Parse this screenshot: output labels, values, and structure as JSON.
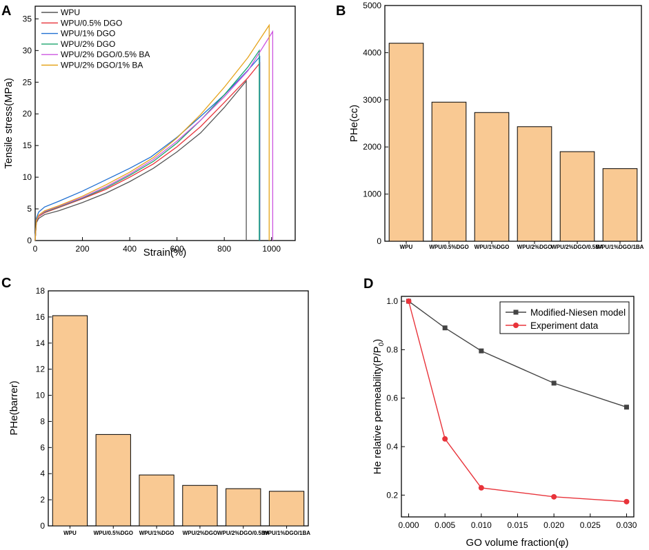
{
  "chart_data": [
    {
      "panel": "A",
      "type": "line",
      "xlabel": "Strain(%)",
      "ylabel": "Tensile stress(MPa)",
      "xlim": [
        0,
        1100
      ],
      "ylim": [
        0,
        37
      ],
      "xticks": [
        0,
        200,
        400,
        600,
        800,
        1000
      ],
      "yticks": [
        0,
        5,
        10,
        15,
        20,
        25,
        30,
        35
      ],
      "legend_position": "top-left",
      "series": [
        {
          "name": "WPU",
          "color": "#555555",
          "break_strain": 893,
          "break_stress": 25.2,
          "points": [
            [
              0,
              0
            ],
            [
              5,
              2.8
            ],
            [
              15,
              3.5
            ],
            [
              40,
              4.1
            ],
            [
              100,
              4.7
            ],
            [
              200,
              6.0
            ],
            [
              300,
              7.5
            ],
            [
              400,
              9.3
            ],
            [
              500,
              11.4
            ],
            [
              600,
              14.0
            ],
            [
              700,
              17.0
            ],
            [
              800,
              21.0
            ],
            [
              893,
              25.2
            ],
            [
              893,
              0
            ]
          ]
        },
        {
          "name": "WPU/0.5% DGO",
          "color": "#e8333a",
          "break_strain": 950,
          "break_stress": 28.0,
          "points": [
            [
              0,
              0
            ],
            [
              5,
              3.0
            ],
            [
              15,
              3.8
            ],
            [
              40,
              4.4
            ],
            [
              100,
              5.2
            ],
            [
              200,
              6.6
            ],
            [
              300,
              8.1
            ],
            [
              400,
              10.0
            ],
            [
              500,
              12.1
            ],
            [
              600,
              14.8
            ],
            [
              700,
              18.0
            ],
            [
              800,
              21.8
            ],
            [
              900,
              25.7
            ],
            [
              950,
              28.0
            ],
            [
              950,
              0
            ]
          ]
        },
        {
          "name": "WPU/1% DGO",
          "color": "#1f6fd1",
          "break_strain": 950,
          "break_stress": 29.0,
          "points": [
            [
              0,
              0
            ],
            [
              5,
              3.5
            ],
            [
              15,
              4.5
            ],
            [
              40,
              5.3
            ],
            [
              100,
              6.2
            ],
            [
              200,
              7.8
            ],
            [
              300,
              9.6
            ],
            [
              400,
              11.4
            ],
            [
              490,
              13.2
            ],
            [
              600,
              16.3
            ],
            [
              700,
              19.6
            ],
            [
              800,
              23.0
            ],
            [
              900,
              26.9
            ],
            [
              950,
              29.0
            ],
            [
              950,
              0
            ]
          ]
        },
        {
          "name": "WPU/2% DGO",
          "color": "#1aa36d",
          "break_strain": 948,
          "break_stress": 30.0,
          "points": [
            [
              0,
              0
            ],
            [
              5,
              3.1
            ],
            [
              15,
              3.9
            ],
            [
              40,
              4.5
            ],
            [
              100,
              5.3
            ],
            [
              200,
              6.7
            ],
            [
              300,
              8.3
            ],
            [
              400,
              10.3
            ],
            [
              500,
              12.5
            ],
            [
              600,
              15.4
            ],
            [
              700,
              19.0
            ],
            [
              800,
              23.0
            ],
            [
              900,
              27.4
            ],
            [
              948,
              30.0
            ],
            [
              948,
              0
            ]
          ]
        },
        {
          "name": "WPU/2% DGO/0.5% BA",
          "color": "#cc55e0",
          "break_strain": 1005,
          "break_stress": 33.0,
          "points": [
            [
              0,
              0
            ],
            [
              5,
              3.1
            ],
            [
              15,
              3.9
            ],
            [
              40,
              4.6
            ],
            [
              100,
              5.4
            ],
            [
              200,
              6.8
            ],
            [
              300,
              8.5
            ],
            [
              400,
              10.5
            ],
            [
              500,
              12.8
            ],
            [
              600,
              15.7
            ],
            [
              700,
              19.0
            ],
            [
              800,
              22.7
            ],
            [
              900,
              26.8
            ],
            [
              1005,
              33.0
            ],
            [
              1005,
              0
            ]
          ]
        },
        {
          "name": "WPU/2% DGO/1% BA",
          "color": "#e5a31a",
          "break_strain": 990,
          "break_stress": 34.0,
          "points": [
            [
              0,
              0
            ],
            [
              5,
              3.2
            ],
            [
              15,
              4.0
            ],
            [
              40,
              4.7
            ],
            [
              100,
              5.5
            ],
            [
              200,
              7.0
            ],
            [
              300,
              8.8
            ],
            [
              400,
              10.8
            ],
            [
              500,
              13.1
            ],
            [
              600,
              16.2
            ],
            [
              700,
              19.9
            ],
            [
              800,
              24.2
            ],
            [
              900,
              28.9
            ],
            [
              990,
              34.0
            ],
            [
              990,
              0
            ]
          ]
        }
      ]
    },
    {
      "panel": "B",
      "type": "bar",
      "xlabel": "",
      "ylabel": "PHe(cc)",
      "ylim": [
        0,
        5000
      ],
      "yticks": [
        0,
        1000,
        2000,
        3000,
        4000,
        5000
      ],
      "categories": [
        "WPU",
        "WPU/0.5%DGO",
        "WPU/1%DGO",
        "WPU/2%DGO",
        "WPU/2%DGO/0.5BA",
        "WPU/1%DGO/1BA"
      ],
      "values": [
        4200,
        2950,
        2730,
        2430,
        1900,
        1540
      ],
      "bar_color": "#f9c993"
    },
    {
      "panel": "C",
      "type": "bar",
      "xlabel": "",
      "ylabel": "PHe(barrer)",
      "ylim": [
        0,
        18
      ],
      "yticks": [
        0,
        2,
        4,
        6,
        8,
        10,
        12,
        14,
        16,
        18
      ],
      "categories": [
        "WPU",
        "WPU/0.5%DGO",
        "WPU/1%DGO",
        "WPU/2%DGO",
        "WPU/2%DGO/0.5BA",
        "WPU/1%DGO/1BA"
      ],
      "values": [
        16.1,
        7.0,
        3.9,
        3.1,
        2.85,
        2.65
      ],
      "bar_color": "#f9c993"
    },
    {
      "panel": "D",
      "type": "line",
      "xlabel": "GO volume fraction(φ)",
      "ylabel": "He relative permeability(P/P",
      "ylabel_sub": "0",
      "ylabel_close": ")",
      "xlim": [
        -0.001,
        0.031
      ],
      "ylim": [
        0.11,
        1.02
      ],
      "xticks": [
        "0.000",
        "0.005",
        "0.010",
        "0.015",
        "0.020",
        "0.025",
        "0.030"
      ],
      "yticks": [
        "0.2",
        "0.4",
        "0.6",
        "0.8",
        "1.0"
      ],
      "legend_position": "top-right",
      "series": [
        {
          "name": "Modified-Niesen model",
          "color": "#444444",
          "marker": "square",
          "x": [
            0,
            0.005,
            0.01,
            0.02,
            0.03
          ],
          "y": [
            1.0,
            0.89,
            0.795,
            0.662,
            0.563
          ]
        },
        {
          "name": "Experiment data",
          "color": "#e8333a",
          "marker": "circle",
          "x": [
            0,
            0.005,
            0.01,
            0.02,
            0.03
          ],
          "y": [
            1.0,
            0.432,
            0.23,
            0.193,
            0.173
          ]
        }
      ]
    }
  ],
  "panel_labels": [
    "A",
    "B",
    "C",
    "D"
  ]
}
